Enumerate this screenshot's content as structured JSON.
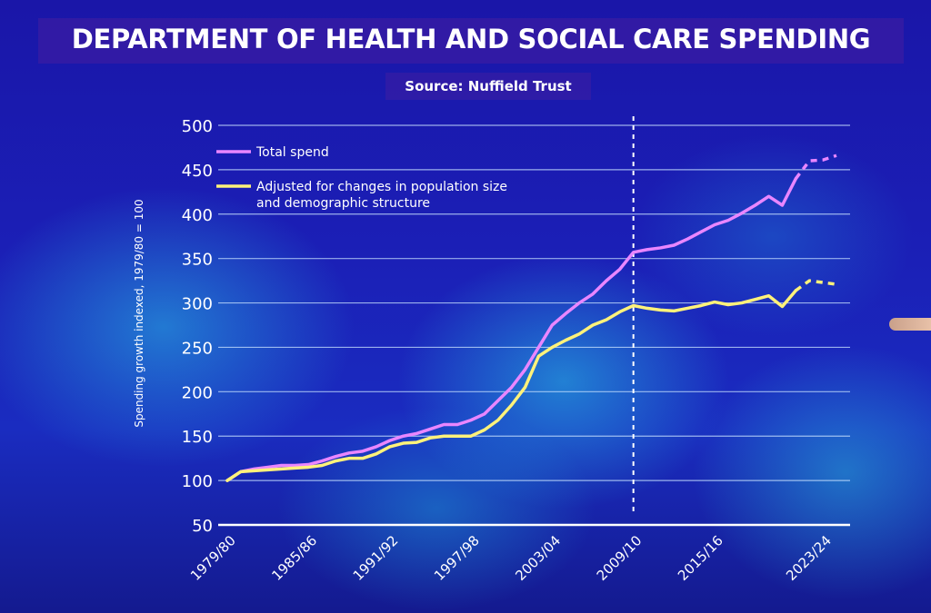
{
  "title": "DEPARTMENT OF HEALTH AND SOCIAL CARE SPENDING",
  "subtitle": "Source: Nuffield Trust",
  "chart_data": {
    "type": "line",
    "title": "DEPARTMENT OF HEALTH AND SOCIAL CARE SPENDING",
    "subtitle": "Source: Nuffield Trust",
    "ylabel": "Spending growth indexed, 1979/80 = 100",
    "xlabel": "",
    "ylim": [
      50,
      500
    ],
    "yticks": [
      50,
      100,
      150,
      200,
      250,
      300,
      350,
      400,
      450,
      500
    ],
    "xticks": [
      "1979/80",
      "1985/86",
      "1991/92",
      "1997/98",
      "2003/04",
      "2009/10",
      "2015/16",
      "2023/24"
    ],
    "x": [
      "1979/80",
      "1980/81",
      "1981/82",
      "1982/83",
      "1983/84",
      "1984/85",
      "1985/86",
      "1986/87",
      "1987/88",
      "1988/89",
      "1989/90",
      "1990/91",
      "1991/92",
      "1992/93",
      "1993/94",
      "1994/95",
      "1995/96",
      "1996/97",
      "1997/98",
      "1998/99",
      "1999/00",
      "2000/01",
      "2001/02",
      "2002/03",
      "2003/04",
      "2004/05",
      "2005/06",
      "2006/07",
      "2007/08",
      "2008/09",
      "2009/10",
      "2010/11",
      "2011/12",
      "2012/13",
      "2013/14",
      "2014/15",
      "2015/16",
      "2016/17",
      "2017/18",
      "2018/19",
      "2019/20",
      "2020/21",
      "2021/22",
      "2022/23",
      "2023/24",
      "2024/25"
    ],
    "divider_at": "2009/10",
    "projection_from": "2021/22",
    "grid": true,
    "legend_position": "top-left",
    "series": [
      {
        "name": "Total spend",
        "color": "#e986ff",
        "values": [
          100,
          110,
          113,
          115,
          117,
          117,
          118,
          122,
          127,
          131,
          133,
          138,
          145,
          150,
          153,
          158,
          163,
          163,
          168,
          175,
          190,
          205,
          225,
          250,
          275,
          288,
          300,
          310,
          325,
          338,
          357,
          360,
          362,
          365,
          372,
          380,
          388,
          393,
          401,
          410,
          420,
          410,
          440,
          460,
          461,
          466
        ]
      },
      {
        "name": "Adjusted for changes in population size and demographic structure",
        "color": "#fff27a",
        "values": [
          100,
          110,
          111,
          112,
          113,
          114,
          115,
          117,
          122,
          125,
          125,
          130,
          138,
          142,
          143,
          148,
          150,
          150,
          150,
          157,
          168,
          185,
          205,
          240,
          250,
          258,
          265,
          275,
          281,
          290,
          297,
          294,
          292,
          291,
          294,
          297,
          301,
          298,
          300,
          304,
          308,
          296,
          314,
          325,
          323,
          321
        ]
      }
    ]
  }
}
